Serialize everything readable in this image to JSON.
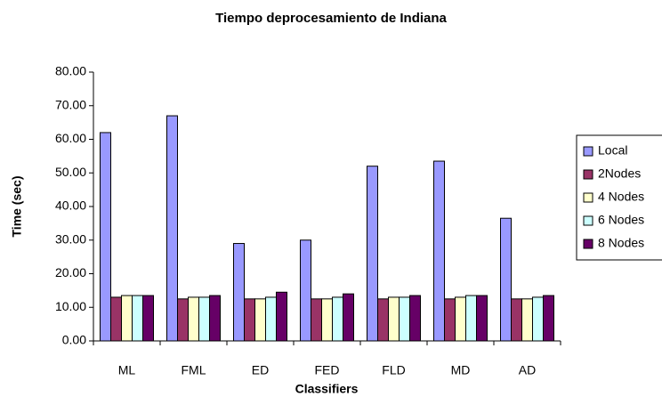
{
  "chart_data": {
    "type": "bar",
    "title": "Tiempo deprocesamiento de Indiana",
    "xlabel": "Classifiers",
    "ylabel": "Time (sec)",
    "categories": [
      "ML",
      "FML",
      "ED",
      "FED",
      "FLD",
      "MD",
      "AD"
    ],
    "series": [
      {
        "name": "Local",
        "color": "#9999ff",
        "values": [
          62,
          67,
          29,
          30,
          52,
          53.5,
          36.5
        ]
      },
      {
        "name": "2Nodes",
        "color": "#993366",
        "values": [
          13,
          12.5,
          12.5,
          12.5,
          12.5,
          12.5,
          12.5
        ]
      },
      {
        "name": "4 Nodes",
        "color": "#ffffcc",
        "values": [
          13.5,
          13,
          12.5,
          12.5,
          13,
          13,
          12.5
        ]
      },
      {
        "name": "6 Nodes",
        "color": "#ccffff",
        "values": [
          13.5,
          13,
          13,
          13,
          13,
          13.5,
          13
        ]
      },
      {
        "name": "8 Nodes",
        "color": "#660066",
        "values": [
          13.5,
          13.5,
          14.5,
          14,
          13.5,
          13.5,
          13.5
        ]
      }
    ],
    "ylim": [
      0,
      80
    ],
    "yticks": [
      {
        "value": 0,
        "label": "0.00"
      },
      {
        "value": 10,
        "label": "10.00"
      },
      {
        "value": 20,
        "label": "20.00"
      },
      {
        "value": 30,
        "label": "30.00"
      },
      {
        "value": 40,
        "label": "40.00"
      },
      {
        "value": 50,
        "label": "50.00"
      },
      {
        "value": 60,
        "label": "60.00"
      },
      {
        "value": 70,
        "label": "70.00"
      },
      {
        "value": 80,
        "label": "80.00"
      }
    ],
    "grid": false,
    "legend": "right"
  }
}
